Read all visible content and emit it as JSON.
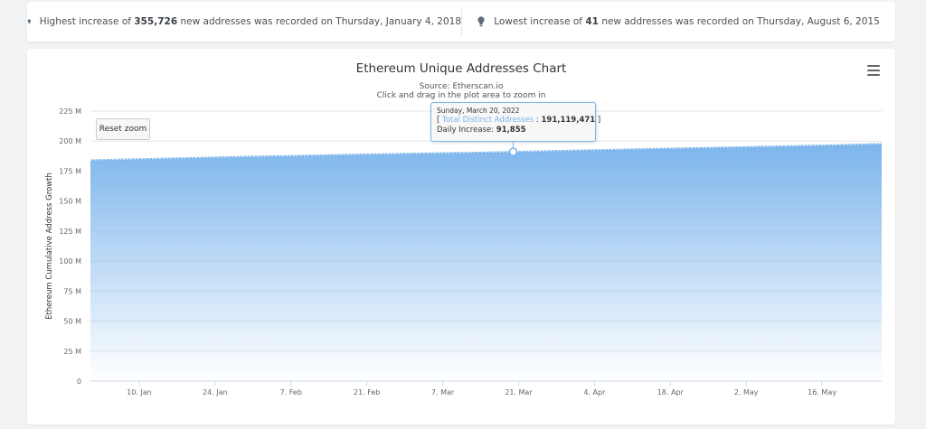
{
  "stats": {
    "highest": {
      "prefix": "Highest increase of",
      "value": "355,726",
      "suffix": "new addresses was recorded on Thursday, January 4, 2018"
    },
    "lowest": {
      "prefix": "Lowest increase of",
      "value": "41",
      "suffix": "new addresses was recorded on Thursday, August 6, 2015"
    }
  },
  "controls": {
    "reset_zoom": "Reset zoom",
    "menu_icon": "hamburger-menu-icon",
    "bulb_icon": "lightbulb-icon"
  },
  "colors": {
    "area_top": "#7cb5ec",
    "line": "#7cb5ec"
  },
  "tooltip": {
    "date": "Sunday, March 20, 2022",
    "series_label": "Total Distinct Addresses",
    "series_value": "191,119,471",
    "increase_label": "Daily Increase:",
    "increase_value": "91,855"
  },
  "chart_data": {
    "type": "area",
    "title": "Ethereum Unique Addresses Chart",
    "subtitle": "Source: Etherscan.io",
    "subtitle2": "Click and drag in the plot area to zoom in",
    "xlabel": "",
    "ylabel": "Ethereum Cumulative Address Growth",
    "ylim": [
      0,
      225000000
    ],
    "y_ticks": [
      0,
      25000000,
      50000000,
      75000000,
      100000000,
      125000000,
      150000000,
      175000000,
      200000000,
      225000000
    ],
    "y_tick_labels": [
      "0",
      "25 M",
      "50 M",
      "75 M",
      "100 M",
      "125 M",
      "150 M",
      "175 M",
      "200 M",
      "225 M"
    ],
    "x_ticks": [
      {
        "label": "10. Jan",
        "day": 9
      },
      {
        "label": "24. Jan",
        "day": 23
      },
      {
        "label": "7. Feb",
        "day": 37
      },
      {
        "label": "21. Feb",
        "day": 51
      },
      {
        "label": "7. Mar",
        "day": 65
      },
      {
        "label": "21. Mar",
        "day": 79
      },
      {
        "label": "4. Apr",
        "day": 93
      },
      {
        "label": "18. Apr",
        "day": 107
      },
      {
        "label": "2. May",
        "day": 121
      },
      {
        "label": "16. May",
        "day": 135
      }
    ],
    "x_range_days": [
      0,
      146
    ],
    "x_day0": "2022-01-01",
    "series": [
      {
        "name": "Total Distinct Addresses",
        "points": [
          {
            "day": 0,
            "value": 184200000
          },
          {
            "day": 15,
            "value": 185700000
          },
          {
            "day": 30,
            "value": 187200000
          },
          {
            "day": 45,
            "value": 188500000
          },
          {
            "day": 60,
            "value": 189700000
          },
          {
            "day": 78,
            "value": 191119471
          },
          {
            "day": 90,
            "value": 192400000
          },
          {
            "day": 105,
            "value": 193800000
          },
          {
            "day": 120,
            "value": 195100000
          },
          {
            "day": 135,
            "value": 196500000
          },
          {
            "day": 146,
            "value": 197800000
          }
        ]
      }
    ],
    "highlight": {
      "day": 78,
      "value": 191119471
    }
  }
}
